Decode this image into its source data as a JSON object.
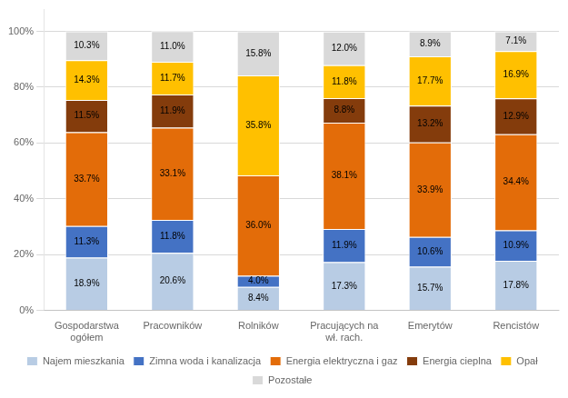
{
  "chart_data": {
    "type": "bar",
    "stacked": true,
    "orientation": "vertical",
    "categories": [
      "Gospodarstwa\nogółem",
      "Pracowników",
      "Rolników",
      "Pracujących na\nwł. rach.",
      "Emerytów",
      "Rencistów"
    ],
    "series": [
      {
        "name": "Najem mieszkania",
        "color": "#b8cce4",
        "values": [
          18.9,
          20.6,
          8.4,
          17.3,
          15.7,
          17.8
        ],
        "value_labels": [
          "18.9%",
          "20.6%",
          "8.4%",
          "17.3%",
          "15.7%",
          "17.8%"
        ]
      },
      {
        "name": "Zimna woda i kanalizacja",
        "color": "#4472c4",
        "values": [
          11.3,
          11.8,
          4.0,
          11.9,
          10.6,
          10.9
        ],
        "value_labels": [
          "11.3%",
          "11.8%",
          "4.0%",
          "11.9%",
          "10.6%",
          "10.9%"
        ]
      },
      {
        "name": "Energia elektryczna i gaz",
        "color": "#e36c09",
        "values": [
          33.7,
          33.1,
          36.0,
          38.1,
          33.9,
          34.4
        ],
        "value_labels": [
          "33.7%",
          "33.1%",
          "36.0%",
          "38.1%",
          "33.9%",
          "34.4%"
        ]
      },
      {
        "name": "Energia cieplna",
        "color": "#843c0c",
        "values": [
          11.5,
          11.9,
          0.0,
          8.8,
          13.2,
          12.9
        ],
        "value_labels": [
          "11.5%",
          "11.9%",
          null,
          "8.8%",
          "13.2%",
          "12.9%"
        ]
      },
      {
        "name": "Opał",
        "color": "#ffc000",
        "values": [
          14.3,
          11.7,
          35.8,
          11.8,
          17.7,
          16.9
        ],
        "value_labels": [
          "14.3%",
          "11.7%",
          "35.8%",
          "11.8%",
          "17.7%",
          "16.9%"
        ]
      },
      {
        "name": "Pozostałe",
        "color": "#d9d9d9",
        "values": [
          10.3,
          11.0,
          15.8,
          12.0,
          8.9,
          7.1
        ],
        "value_labels": [
          "10.3%",
          "11.0%",
          "15.8%",
          "12.0%",
          "8.9%",
          "7.1%"
        ]
      }
    ],
    "ylim": [
      0,
      108
    ],
    "yticks": [
      {
        "value": 0,
        "label": "0%"
      },
      {
        "value": 20,
        "label": "20%"
      },
      {
        "value": 40,
        "label": "40%"
      },
      {
        "value": 60,
        "label": "60%"
      },
      {
        "value": 80,
        "label": "80%"
      },
      {
        "value": 100,
        "label": "100%"
      }
    ],
    "grid": true,
    "legend": "bottom",
    "data_labels": true
  }
}
